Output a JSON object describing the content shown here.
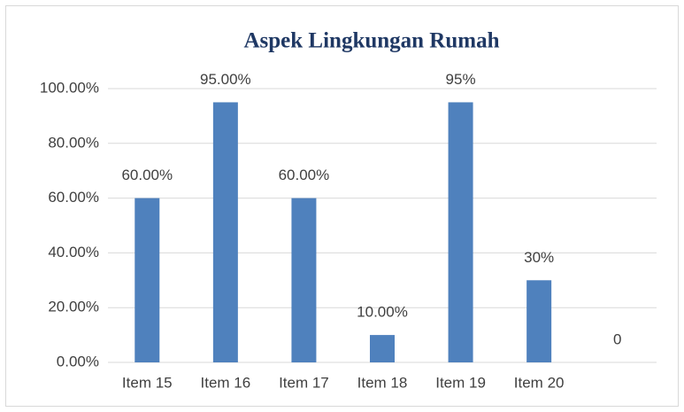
{
  "chart_data": {
    "type": "bar",
    "title": "Aspek Lingkungan Rumah",
    "categories": [
      "Item 15",
      "Item 16",
      "Item 17",
      "Item 18",
      "Item 19",
      "Item 20",
      null
    ],
    "values": [
      60,
      95,
      60,
      10,
      95,
      30,
      0
    ],
    "value_labels": [
      "60.00%",
      "95.00%",
      "60.00%",
      "10.00%",
      "95%",
      "30%",
      "0"
    ],
    "color": "#4f81bd",
    "ylim": [
      0,
      100
    ],
    "yticks": [
      {
        "value": 0,
        "label": "0.00%"
      },
      {
        "value": 20,
        "label": "20.00%"
      },
      {
        "value": 40,
        "label": "40.00%"
      },
      {
        "value": 60,
        "label": "60.00%"
      },
      {
        "value": 80,
        "label": "80.00%"
      },
      {
        "value": 100,
        "label": "100.00%"
      }
    ],
    "grid": true
  }
}
